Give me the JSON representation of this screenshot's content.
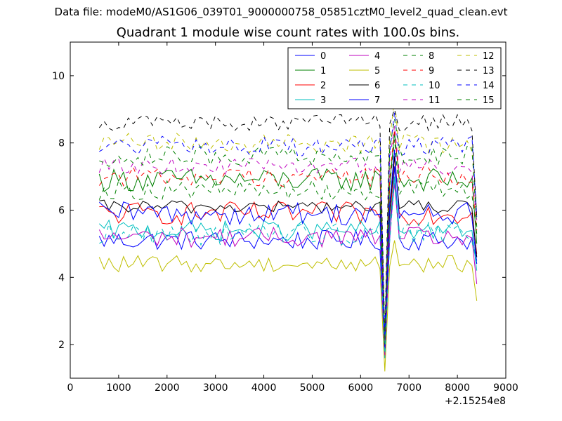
{
  "suptitle": "Data file: modeM0/AS1G06_039T01_9000000758_05851cztM0_level2_quad_clean.evt",
  "chart_data": {
    "type": "line",
    "title": "Quadrant 1 module wise count rates with 100.0s bins.",
    "xlabel": "",
    "ylabel": "",
    "x_offset_label": "+2.15254e8",
    "xlim": [
      0,
      9000
    ],
    "ylim": [
      1,
      11
    ],
    "xticks": [
      0,
      1000,
      2000,
      3000,
      4000,
      5000,
      6000,
      7000,
      8000,
      9000
    ],
    "xtick_labels": [
      "0",
      "1000",
      "2000",
      "3000",
      "4000",
      "5000",
      "6000",
      "7000",
      "8000",
      "9000"
    ],
    "yticks": [
      2,
      4,
      6,
      8,
      10
    ],
    "ytick_labels": [
      "2",
      "4",
      "6",
      "8",
      "10"
    ],
    "grid": false,
    "legend_position": "top-right",
    "legend_columns": 4,
    "x": {
      "start": 600,
      "step": 100,
      "count": 79
    },
    "dip_x": [
      6500,
      6700
    ],
    "series": [
      {
        "name": "0",
        "color": "#0000ff",
        "dash": "solid",
        "base": 5.1,
        "noise": 0.3,
        "dip": 1.6,
        "peak": 7.3,
        "end": 4.5
      },
      {
        "name": "1",
        "color": "#008000",
        "dash": "solid",
        "base": 6.9,
        "noise": 0.35,
        "dip": 2.0,
        "peak": 8.3,
        "end": 5.0
      },
      {
        "name": "2",
        "color": "#ff0000",
        "dash": "solid",
        "base": 5.9,
        "noise": 0.35,
        "dip": 1.8,
        "peak": 7.6,
        "end": 4.7
      },
      {
        "name": "3",
        "color": "#00bfbf",
        "dash": "solid",
        "base": 5.4,
        "noise": 0.3,
        "dip": 1.7,
        "peak": 7.0,
        "end": 4.2
      },
      {
        "name": "4",
        "color": "#bf00bf",
        "dash": "solid",
        "base": 5.2,
        "noise": 0.3,
        "dip": 1.6,
        "peak": 6.8,
        "end": 3.8
      },
      {
        "name": "5",
        "color": "#bfbf00",
        "dash": "solid",
        "base": 4.4,
        "noise": 0.25,
        "dip": 1.2,
        "peak": 5.1,
        "end": 3.3
      },
      {
        "name": "6",
        "color": "#000000",
        "dash": "solid",
        "base": 6.1,
        "noise": 0.2,
        "dip": 1.9,
        "peak": 7.6,
        "end": 4.6
      },
      {
        "name": "7",
        "color": "#0000ff",
        "dash": "solid",
        "base": 5.9,
        "noise": 0.35,
        "dip": 1.8,
        "peak": 7.8,
        "end": 4.4
      },
      {
        "name": "8",
        "color": "#008000",
        "dash": "dashed",
        "base": 6.6,
        "noise": 0.3,
        "dip": 2.0,
        "peak": 8.1,
        "end": 5.3
      },
      {
        "name": "9",
        "color": "#ff0000",
        "dash": "dashed",
        "base": 7.0,
        "noise": 0.3,
        "dip": 2.1,
        "peak": 8.4,
        "end": 5.4
      },
      {
        "name": "10",
        "color": "#00bfbf",
        "dash": "dashed",
        "base": 5.3,
        "noise": 0.35,
        "dip": 1.6,
        "peak": 6.9,
        "end": 4.4
      },
      {
        "name": "11",
        "color": "#bf00bf",
        "dash": "dashed",
        "base": 7.3,
        "noise": 0.25,
        "dip": 2.1,
        "peak": 8.5,
        "end": 5.7
      },
      {
        "name": "12",
        "color": "#bfbf00",
        "dash": "dashed",
        "base": 8.0,
        "noise": 0.3,
        "dip": 2.2,
        "peak": 9.3,
        "end": 5.9
      },
      {
        "name": "13",
        "color": "#000000",
        "dash": "dashed",
        "base": 8.6,
        "noise": 0.25,
        "dip": 2.3,
        "peak": 9.0,
        "end": 5.8
      },
      {
        "name": "14",
        "color": "#0000ff",
        "dash": "dashed",
        "base": 7.9,
        "noise": 0.3,
        "dip": 2.2,
        "peak": 8.9,
        "end": 5.8
      },
      {
        "name": "15",
        "color": "#008000",
        "dash": "dashed",
        "base": 7.6,
        "noise": 0.3,
        "dip": 2.1,
        "peak": 8.7,
        "end": 5.5
      }
    ]
  }
}
